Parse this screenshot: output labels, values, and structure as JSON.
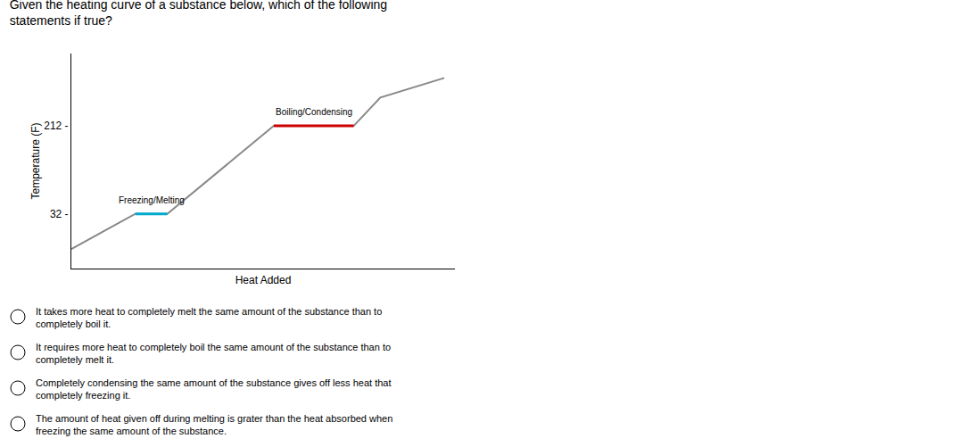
{
  "chart_data": {
    "type": "line",
    "title": "Given the heating curve of a substance below, which of the following\nstatements if true?",
    "x": [
      0.0,
      1.2,
      1.8,
      3.8,
      5.3,
      5.8,
      7.0
    ],
    "series": [
      {
        "color": "#888888",
        "values": [
          -40,
          32,
          32,
          212,
          212,
          270,
          310
        ]
      },
      {
        "name": "Freezing/Melting",
        "color": "#00aacc",
        "values": [
          null,
          32,
          32,
          null,
          null,
          null,
          null
        ]
      },
      {
        "name": "Boiling/Condensing",
        "color": "#cc0000",
        "values": [
          null,
          null,
          null,
          212,
          212,
          null,
          null
        ]
      }
    ],
    "xlabel": "Heat Added",
    "ylabel": "Temperature (F)",
    "xlim": [
      0,
      7.2
    ],
    "ylim": [
      -80,
      360
    ],
    "yticks": [
      {
        "value": 32,
        "label": "32 -"
      },
      {
        "value": 212,
        "label": "212 -"
      }
    ],
    "tick_labels": "y",
    "grid": false,
    "annotations": [
      "It takes more heat to completely melt the same amount of the substance than to\ncompletely boil it.",
      "It requires more heat to completely boil the same amount of the substance than to\ncompletely melt it.",
      "Completely condensing the same amount of the substance gives off less heat that\ncompletely freezing it.",
      "The amount of heat given off during melting is grater than the heat absorbed when\nfreezing the same amount of the substance."
    ]
  }
}
